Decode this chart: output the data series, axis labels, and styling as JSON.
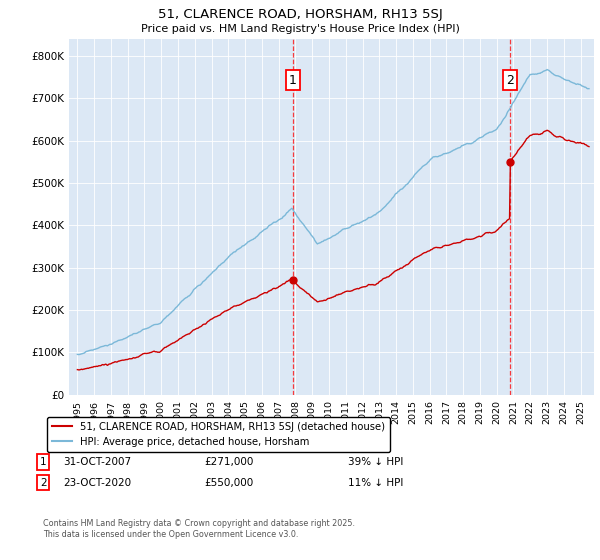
{
  "title1": "51, CLARENCE ROAD, HORSHAM, RH13 5SJ",
  "title2": "Price paid vs. HM Land Registry's House Price Index (HPI)",
  "ylabel_ticks": [
    "£0",
    "£100K",
    "£200K",
    "£300K",
    "£400K",
    "£500K",
    "£600K",
    "£700K",
    "£800K"
  ],
  "ytick_values": [
    0,
    100000,
    200000,
    300000,
    400000,
    500000,
    600000,
    700000,
    800000
  ],
  "ylim": [
    0,
    840000
  ],
  "xlim": [
    1994.5,
    2025.8
  ],
  "hpi_color": "#7bb8d8",
  "price_color": "#cc0000",
  "marker1_x": 2007.83,
  "marker1_y": 271000,
  "marker2_x": 2020.81,
  "marker2_y": 550000,
  "legend_property": "51, CLARENCE ROAD, HORSHAM, RH13 5SJ (detached house)",
  "legend_hpi": "HPI: Average price, detached house, Horsham",
  "annotation1_date": "31-OCT-2007",
  "annotation1_price": "£271,000",
  "annotation1_change": "39% ↓ HPI",
  "annotation2_date": "23-OCT-2020",
  "annotation2_price": "£550,000",
  "annotation2_change": "11% ↓ HPI",
  "footer": "Contains HM Land Registry data © Crown copyright and database right 2025.\nThis data is licensed under the Open Government Licence v3.0.",
  "bg_color": "#dce8f5",
  "fig_bg": "#ffffff"
}
